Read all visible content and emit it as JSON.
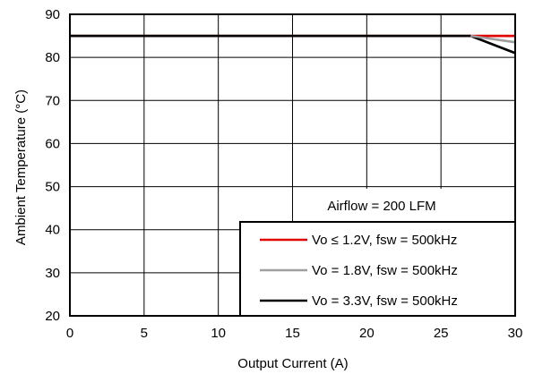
{
  "chart_data": {
    "type": "line",
    "title": "",
    "xlabel": "Output Current (A)",
    "ylabel": "Ambient Temperature (°C)",
    "xlim": [
      0,
      30
    ],
    "ylim": [
      20,
      90
    ],
    "x_ticks": [
      0,
      5,
      10,
      15,
      20,
      25,
      30
    ],
    "y_ticks": [
      20,
      30,
      40,
      50,
      60,
      70,
      80,
      90
    ],
    "grid": true,
    "legend_position": "bottom-right",
    "annotation": "Airflow = 200 LFM",
    "series": [
      {
        "name": "Vo ≤ 1.2V, fsw = 500kHz",
        "color": "#e00000",
        "x": [
          0,
          27,
          30
        ],
        "y": [
          85,
          85,
          85
        ]
      },
      {
        "name": "Vo = 1.8V, fsw = 500kHz",
        "color": "#a0a0a0",
        "x": [
          0,
          27,
          30
        ],
        "y": [
          85,
          85,
          83.5
        ]
      },
      {
        "name": "Vo = 3.3V, fsw = 500kHz",
        "color": "#000000",
        "x": [
          0,
          27,
          30
        ],
        "y": [
          85,
          85,
          81
        ]
      }
    ]
  }
}
